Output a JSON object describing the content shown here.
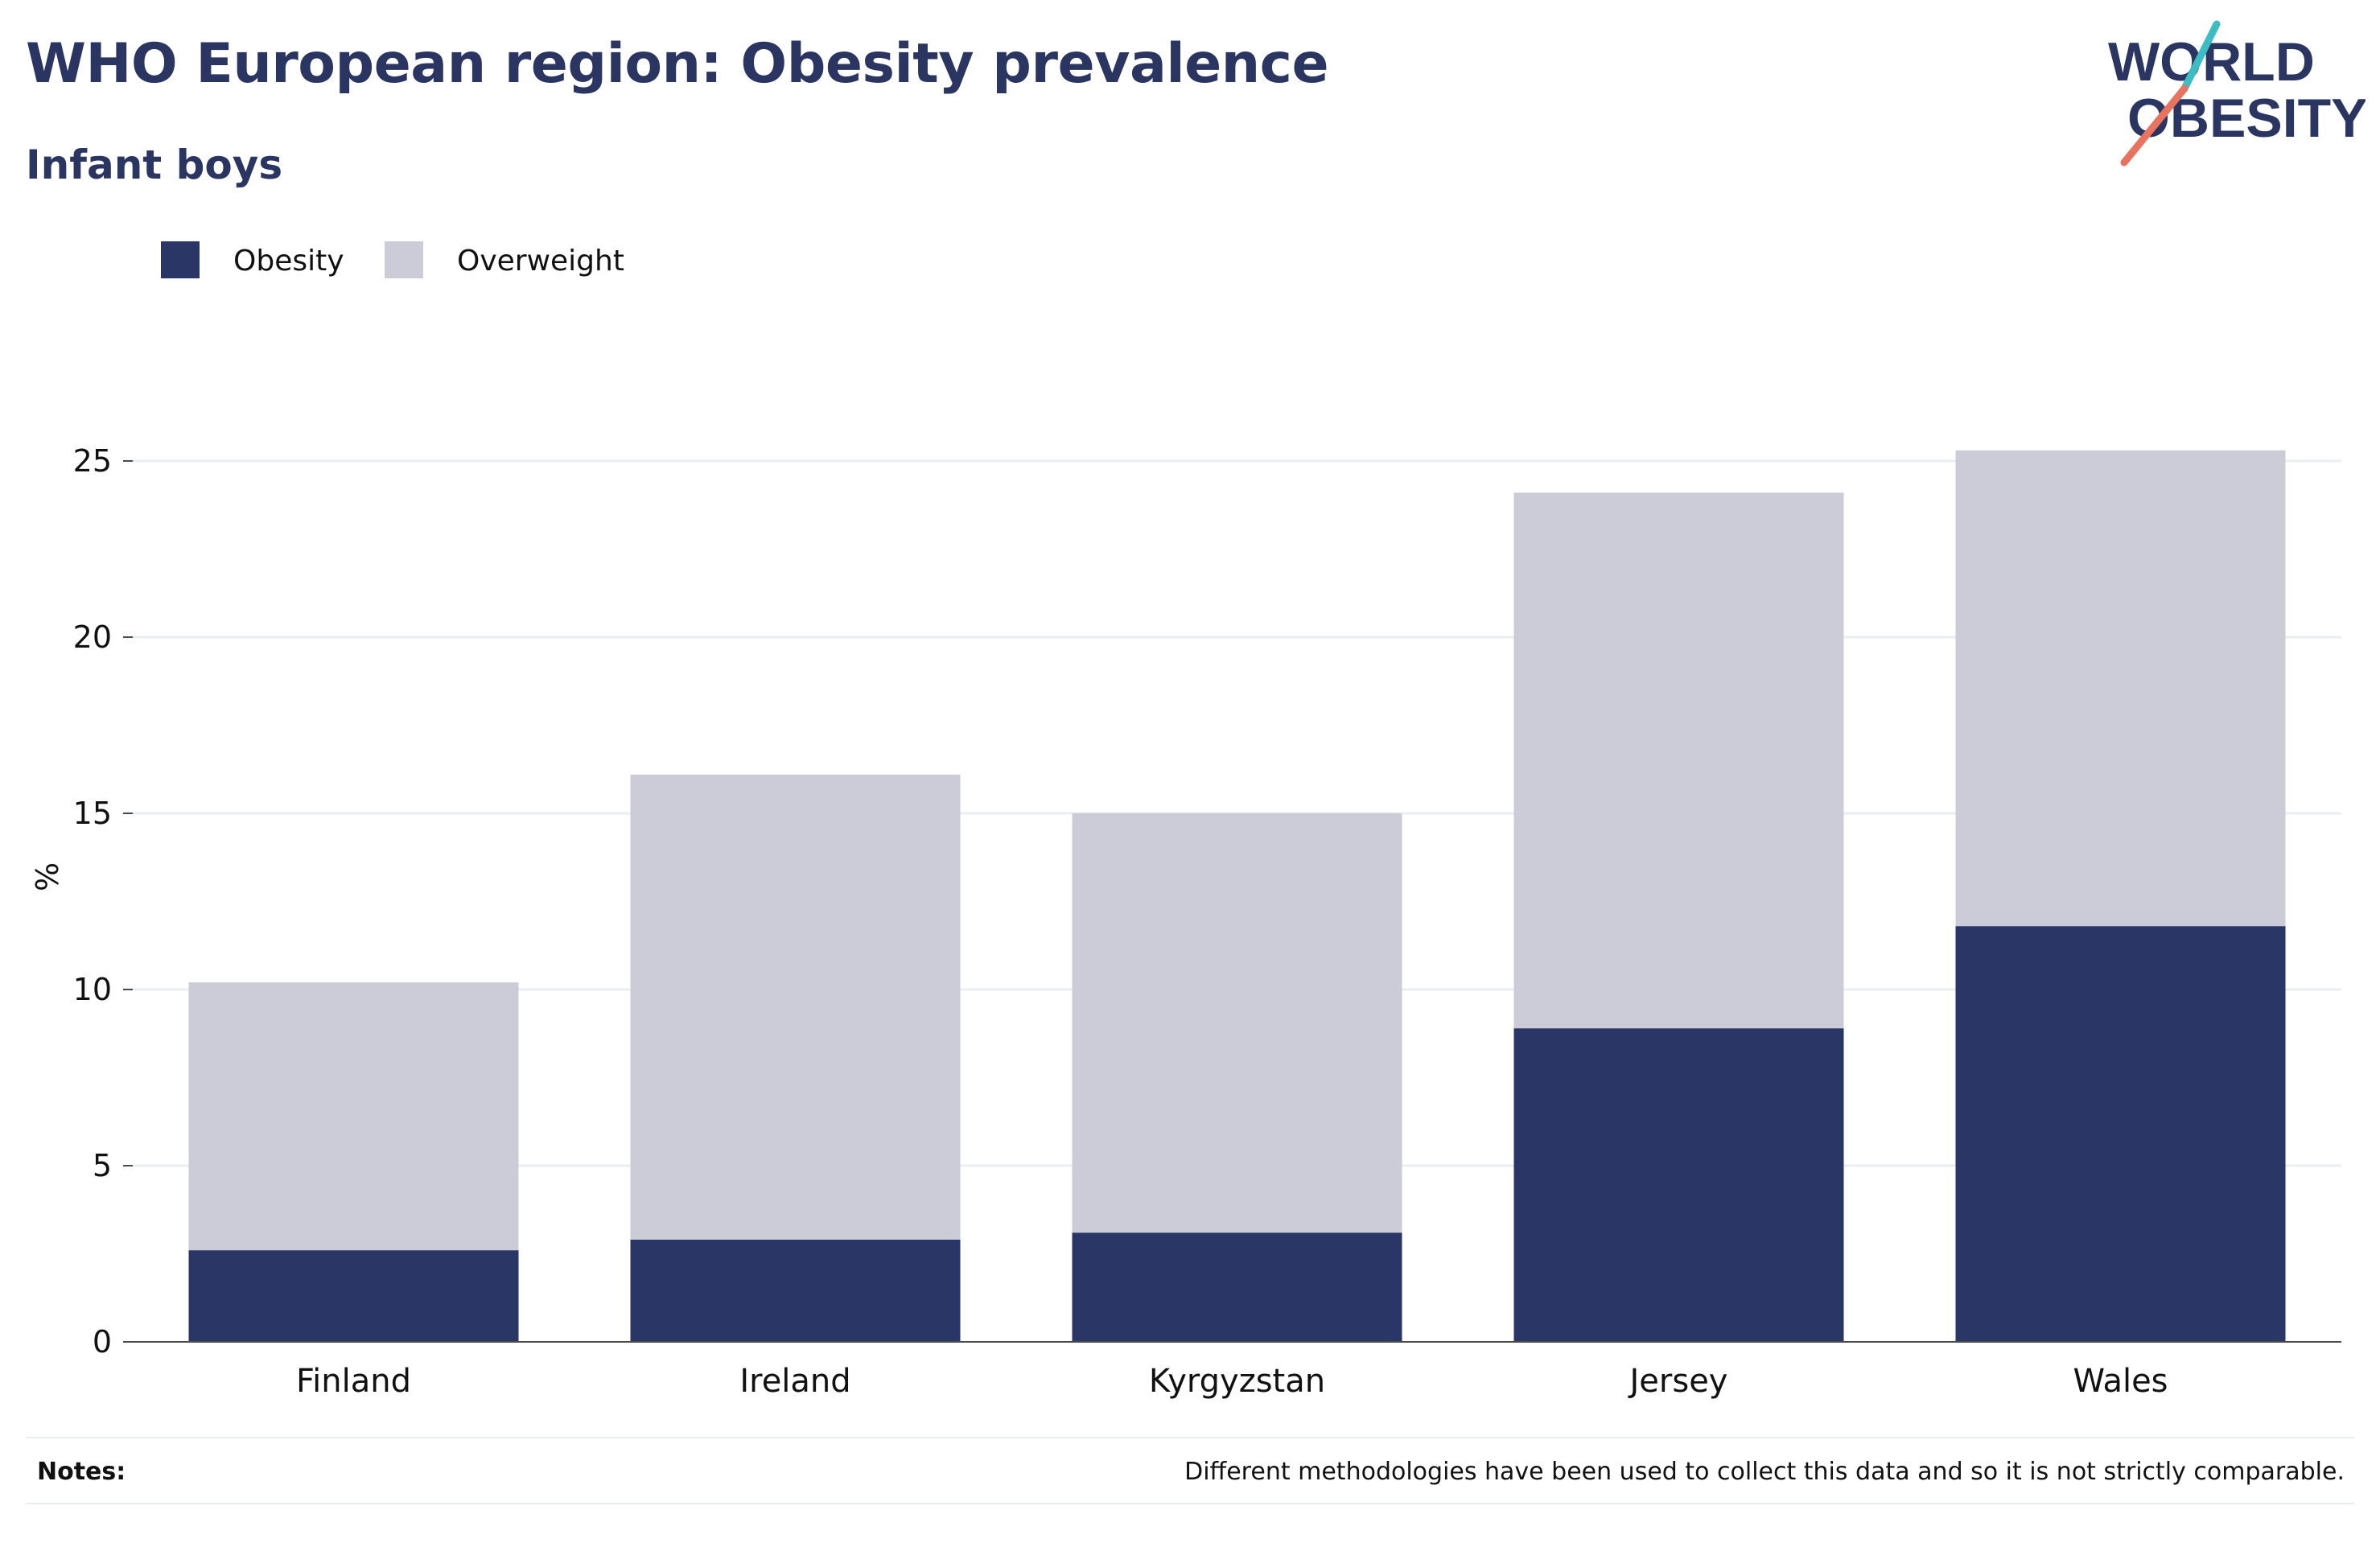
{
  "header": {
    "title": "WHO European region: Obesity prevalence",
    "subtitle": "Infant boys"
  },
  "logo": {
    "line1": "WORLD",
    "line2": "OBESITY",
    "accent_teal": "#3cbcc3",
    "accent_coral": "#e8735f",
    "color": "#2a3561"
  },
  "chart_data": {
    "type": "bar",
    "stacked": true,
    "categories": [
      "Finland",
      "Ireland",
      "Kyrgyzstan",
      "Jersey",
      "Wales"
    ],
    "series": [
      {
        "name": "Obesity",
        "color": "#2a3665",
        "values": [
          2.6,
          2.9,
          3.1,
          8.9,
          11.8
        ]
      },
      {
        "name": "Overweight",
        "color": "#cbccd8",
        "values": [
          7.6,
          13.2,
          11.9,
          15.2,
          13.5
        ]
      }
    ],
    "ylabel": "%",
    "ylim": [
      0,
      27
    ],
    "yticks": [
      0,
      5,
      10,
      15,
      20,
      25
    ],
    "grid": true,
    "legend": "top-left"
  },
  "notes": {
    "label": "Notes:",
    "text": "Different methodologies have been used to collect this data and so it is not strictly comparable."
  }
}
